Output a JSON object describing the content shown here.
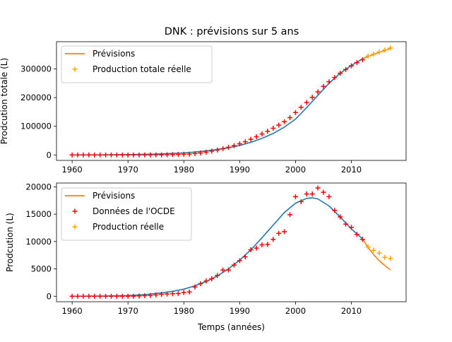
{
  "figure": {
    "title": "DNK : prévisions sur 5 ans"
  },
  "chart_data": [
    {
      "type": "line",
      "title": "DNK : prévisions sur 5 ans",
      "xlabel": "",
      "ylabel": "Prodcution totale (L)",
      "xlim": [
        1957.2,
        2019.8
      ],
      "ylim": [
        -19000,
        395000
      ],
      "xticks": [
        1960,
        1970,
        1980,
        1990,
        2000,
        2010
      ],
      "yticks": [
        0,
        100000,
        200000,
        300000
      ],
      "ytick_labels": [
        "0",
        "100000",
        "200000",
        "300000"
      ],
      "grid": false,
      "legend_position": "upper-left",
      "series": [
        {
          "name": "Prévisions",
          "kind": "line",
          "color": "#ff7f0e",
          "x": [
            2012,
            2013,
            2014,
            2015,
            2016,
            2017
          ],
          "y": [
            335000,
            343000,
            351000,
            358000,
            364000,
            372000
          ]
        },
        {
          "name": "",
          "kind": "line",
          "color": "#1f77b4",
          "x": [
            1960,
            1965,
            1970,
            1975,
            1978,
            1980,
            1982,
            1984,
            1986,
            1988,
            1990,
            1992,
            1994,
            1996,
            1998,
            2000,
            2002,
            2004,
            2006,
            2008,
            2010,
            2012
          ],
          "y": [
            0,
            300,
            1200,
            3000,
            5500,
            7000,
            10000,
            14000,
            19000,
            25000,
            33000,
            44000,
            58000,
            75000,
            97000,
            125000,
            165000,
            208000,
            250000,
            285000,
            312000,
            335000
          ]
        },
        {
          "name": "",
          "kind": "marker",
          "color": "#ff0000",
          "x": [
            1960,
            1961,
            1962,
            1963,
            1964,
            1965,
            1966,
            1967,
            1968,
            1969,
            1970,
            1971,
            1972,
            1973,
            1974,
            1975,
            1976,
            1977,
            1978,
            1979,
            1980,
            1981,
            1982,
            1983,
            1984,
            1985,
            1986,
            1987,
            1988,
            1989,
            1990,
            1991,
            1992,
            1993,
            1994,
            1995,
            1996,
            1997,
            1998,
            1999,
            2000,
            2001,
            2002,
            2003,
            2004,
            2005,
            2006,
            2007,
            2008,
            2009,
            2010,
            2011,
            2012
          ],
          "y": [
            0,
            0,
            0,
            0,
            0,
            0,
            0,
            0,
            0,
            0,
            0,
            0,
            0,
            0,
            100,
            300,
            500,
            800,
            1100,
            1500,
            2200,
            3000,
            4700,
            7000,
            9800,
            13200,
            17000,
            21800,
            26600,
            32300,
            38800,
            46000,
            54500,
            63600,
            73000,
            82500,
            93000,
            104000,
            116000,
            130000,
            148000,
            166000,
            183000,
            201000,
            220000,
            239000,
            255000,
            270000,
            285000,
            298000,
            311000,
            322000,
            332000
          ]
        },
        {
          "name": "Production totale réelle",
          "kind": "marker",
          "color": "#ffa500",
          "x": [
            2013,
            2014,
            2015,
            2016,
            2017
          ],
          "y": [
            345000,
            352000,
            359000,
            366000,
            373000
          ]
        }
      ],
      "legend": [
        {
          "label": "Prévisions",
          "kind": "line",
          "color": "#ff7f0e"
        },
        {
          "label": "Production totale réelle",
          "kind": "marker",
          "color": "#ffa500"
        }
      ]
    },
    {
      "type": "line",
      "title": "",
      "xlabel": "Temps (années)",
      "ylabel": "Prodcution (L)",
      "xlim": [
        1957.2,
        2019.8
      ],
      "ylim": [
        -1000,
        20700
      ],
      "xticks": [
        1960,
        1970,
        1980,
        1990,
        2000,
        2010
      ],
      "yticks": [
        0,
        5000,
        10000,
        15000,
        20000
      ],
      "ytick_labels": [
        "0",
        "5000",
        "10000",
        "15000",
        "20000"
      ],
      "grid": false,
      "legend_position": "upper-left",
      "series": [
        {
          "name": "Prévisions",
          "kind": "line",
          "color": "#ff7f0e",
          "x": [
            2012,
            2013,
            2014,
            2015,
            2016,
            2017
          ],
          "y": [
            10500,
            8900,
            7600,
            6500,
            5600,
            4800
          ]
        },
        {
          "name": "",
          "kind": "line",
          "color": "#1f77b4",
          "x": [
            1960,
            1965,
            1970,
            1973,
            1976,
            1978,
            1980,
            1982,
            1984,
            1986,
            1988,
            1990,
            1992,
            1994,
            1996,
            1998,
            2000,
            2002,
            2003,
            2004,
            2006,
            2008,
            2010,
            2012
          ],
          "y": [
            0,
            30,
            120,
            300,
            600,
            900,
            1300,
            1900,
            2700,
            3700,
            5000,
            6600,
            8500,
            10700,
            13000,
            15300,
            17000,
            17900,
            18000,
            17800,
            16500,
            14500,
            12300,
            10500
          ]
        },
        {
          "name": "Données de l'OCDE",
          "kind": "marker",
          "color": "#ff0000",
          "x": [
            1960,
            1961,
            1962,
            1963,
            1964,
            1965,
            1966,
            1967,
            1968,
            1969,
            1970,
            1971,
            1972,
            1973,
            1974,
            1975,
            1976,
            1977,
            1978,
            1979,
            1980,
            1981,
            1982,
            1983,
            1984,
            1985,
            1986,
            1987,
            1988,
            1989,
            1990,
            1991,
            1992,
            1993,
            1994,
            1995,
            1996,
            1997,
            1998,
            1999,
            2000,
            2001,
            2002,
            2003,
            2004,
            2005,
            2006,
            2007,
            2008,
            2009,
            2010,
            2011,
            2012
          ],
          "y": [
            0,
            0,
            0,
            0,
            0,
            0,
            0,
            0,
            0,
            0,
            0,
            0,
            50,
            100,
            150,
            250,
            350,
            400,
            450,
            500,
            700,
            800,
            1700,
            2300,
            2800,
            3200,
            3800,
            4800,
            4800,
            5700,
            6500,
            7200,
            8500,
            8800,
            9400,
            9500,
            10400,
            11500,
            11800,
            14900,
            18200,
            17300,
            18700,
            18700,
            19800,
            19000,
            18200,
            15700,
            14500,
            13200,
            12600,
            11300,
            10400
          ]
        },
        {
          "name": "Production réelle",
          "kind": "marker",
          "color": "#ffa500",
          "x": [
            2013,
            2014,
            2015,
            2016,
            2017
          ],
          "y": [
            9000,
            8400,
            7900,
            7100,
            6900
          ]
        }
      ],
      "legend": [
        {
          "label": "Prévisions",
          "kind": "line",
          "color": "#ff7f0e"
        },
        {
          "label": "Données de l'OCDE",
          "kind": "marker",
          "color": "#ff0000"
        },
        {
          "label": "Production réelle",
          "kind": "marker",
          "color": "#ffa500"
        }
      ]
    }
  ]
}
